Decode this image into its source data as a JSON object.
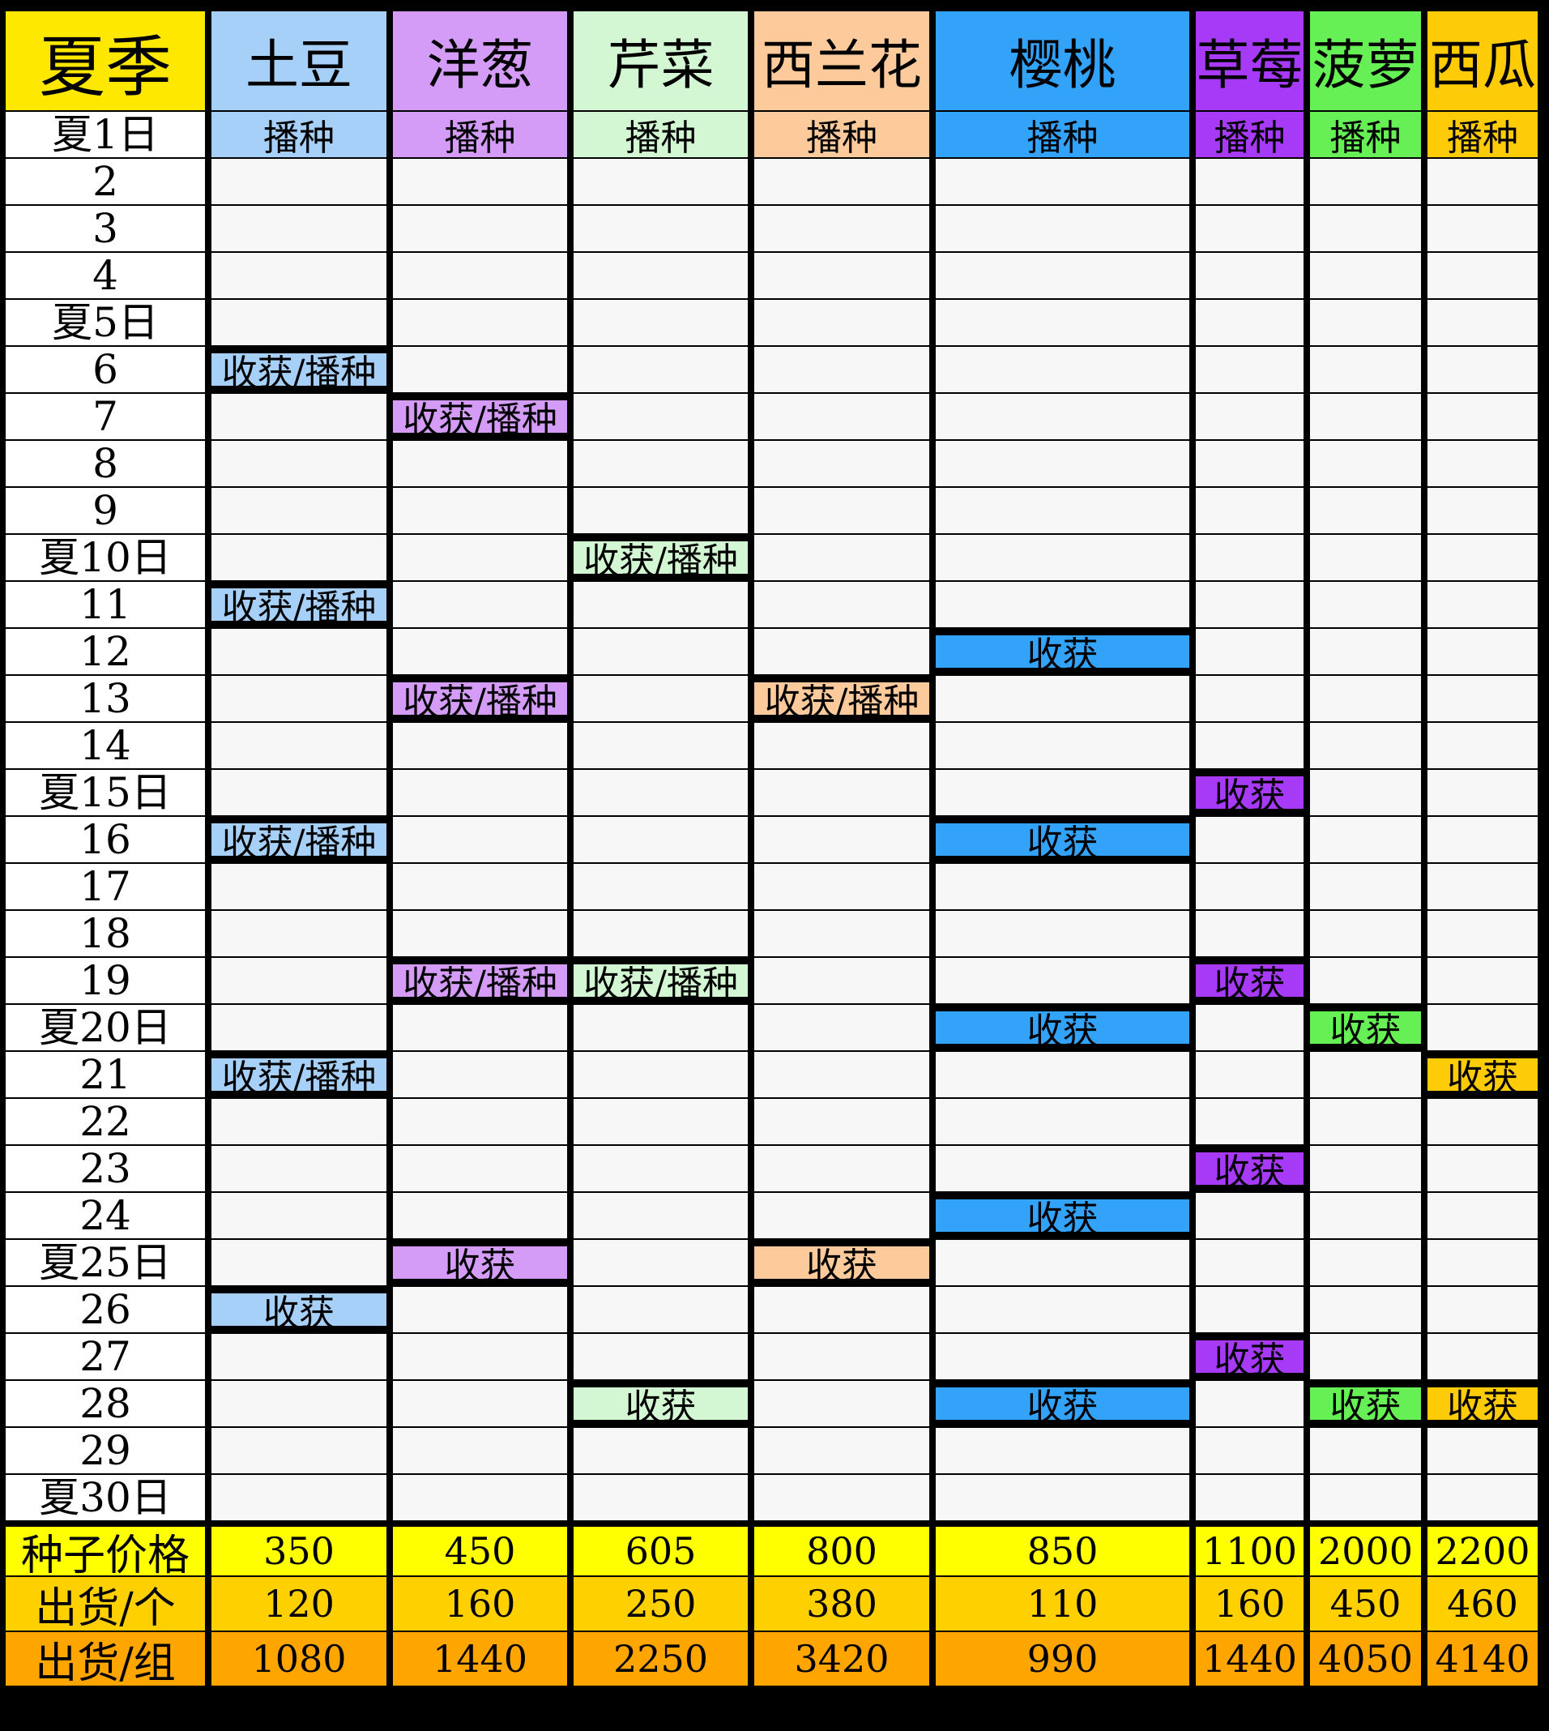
{
  "corner": "夏季",
  "colors": {
    "seed_row": "#ffff00",
    "ship_unit_row": "#ffd000",
    "ship_group_row": "#ffa500",
    "corner": "#ffe800"
  },
  "days": [
    "夏1日",
    "2",
    "3",
    "4",
    "夏5日",
    "6",
    "7",
    "8",
    "9",
    "夏10日",
    "11",
    "12",
    "13",
    "14",
    "夏15日",
    "16",
    "17",
    "18",
    "19",
    "夏20日",
    "21",
    "22",
    "23",
    "24",
    "夏25日",
    "26",
    "27",
    "28",
    "29",
    "夏30日"
  ],
  "crops": [
    {
      "name": "土豆",
      "color": "#a6d0f7",
      "events": {
        "1": "播种",
        "6": "收获/播种",
        "11": "收获/播种",
        "16": "收获/播种",
        "21": "收获/播种",
        "26": "收获"
      }
    },
    {
      "name": "洋葱",
      "color": "#d49cf7",
      "events": {
        "1": "播种",
        "7": "收获/播种",
        "13": "收获/播种",
        "19": "收获/播种",
        "25": "收获"
      }
    },
    {
      "name": "芹菜",
      "color": "#d2f7d2",
      "events": {
        "1": "播种",
        "10": "收获/播种",
        "19": "收获/播种",
        "28": "收获"
      }
    },
    {
      "name": "西兰花",
      "color": "#fdcb9b",
      "events": {
        "1": "播种",
        "13": "收获/播种",
        "25": "收获"
      }
    },
    {
      "name": "樱桃",
      "color": "#33a2f9",
      "events": {
        "1": "播种",
        "12": "收获",
        "16": "收获",
        "20": "收获",
        "24": "收获",
        "28": "收获"
      }
    },
    {
      "name": "草莓",
      "color": "#a63af7",
      "events": {
        "1": "播种",
        "15": "收获",
        "19": "收获",
        "23": "收获",
        "27": "收获"
      }
    },
    {
      "name": "菠萝",
      "color": "#66f055",
      "events": {
        "1": "播种",
        "20": "收获",
        "28": "收获"
      }
    },
    {
      "name": "西瓜",
      "color": "#fdcb08",
      "events": {
        "1": "播种",
        "21": "收获",
        "28": "收获"
      }
    }
  ],
  "summary": [
    {
      "label": "种子价格",
      "values": [
        "350",
        "450",
        "605",
        "800",
        "850",
        "1100",
        "2000",
        "2200"
      ]
    },
    {
      "label": "出货/个",
      "values": [
        "120",
        "160",
        "250",
        "380",
        "110",
        "160",
        "450",
        "460"
      ]
    },
    {
      "label": "出货/组",
      "values": [
        "1080",
        "1440",
        "2250",
        "3420",
        "990",
        "1440",
        "4050",
        "4140"
      ]
    }
  ]
}
